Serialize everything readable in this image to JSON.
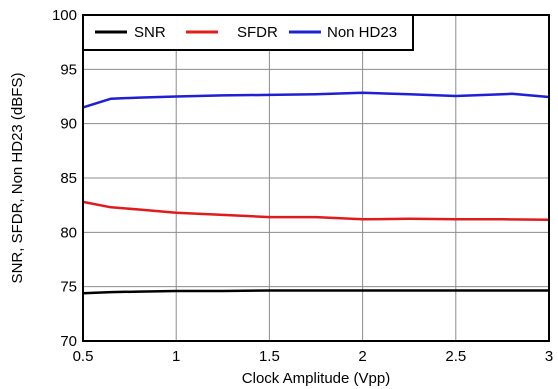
{
  "chart_data": {
    "type": "line",
    "title": "",
    "xlabel": "Clock Amplitude (Vpp)",
    "ylabel": "SNR, SFDR, Non HD23 (dBFS)",
    "xlim": [
      0.5,
      3
    ],
    "ylim": [
      70,
      100
    ],
    "x_ticks": [
      "0.5",
      "1",
      "1.5",
      "2",
      "2.5",
      "3"
    ],
    "y_ticks": [
      "70",
      "75",
      "80",
      "85",
      "90",
      "95",
      "100"
    ],
    "grid": true,
    "legend_position": "top-left",
    "series": [
      {
        "name": "SNR",
        "color": "#000000",
        "x": [
          0.5,
          0.65,
          0.8,
          1.0,
          1.25,
          1.5,
          1.75,
          2.0,
          2.25,
          2.5,
          2.75,
          3.0
        ],
        "y": [
          74.4,
          74.5,
          74.55,
          74.6,
          74.6,
          74.65,
          74.65,
          74.65,
          74.65,
          74.65,
          74.65,
          74.65
        ]
      },
      {
        "name": "SFDR",
        "color": "#e01b1b",
        "x": [
          0.5,
          0.65,
          0.8,
          1.0,
          1.25,
          1.5,
          1.75,
          2.0,
          2.25,
          2.5,
          2.75,
          3.0
        ],
        "y": [
          82.8,
          82.3,
          82.1,
          81.8,
          81.6,
          81.4,
          81.4,
          81.2,
          81.25,
          81.2,
          81.2,
          81.15
        ]
      },
      {
        "name": "Non HD23",
        "color": "#1f1fd6",
        "x": [
          0.5,
          0.65,
          0.8,
          1.0,
          1.25,
          1.5,
          1.75,
          2.0,
          2.25,
          2.5,
          2.75,
          2.8,
          3.0
        ],
        "y": [
          91.5,
          92.3,
          92.4,
          92.5,
          92.6,
          92.65,
          92.7,
          92.85,
          92.7,
          92.55,
          92.7,
          92.75,
          92.45
        ]
      }
    ]
  }
}
